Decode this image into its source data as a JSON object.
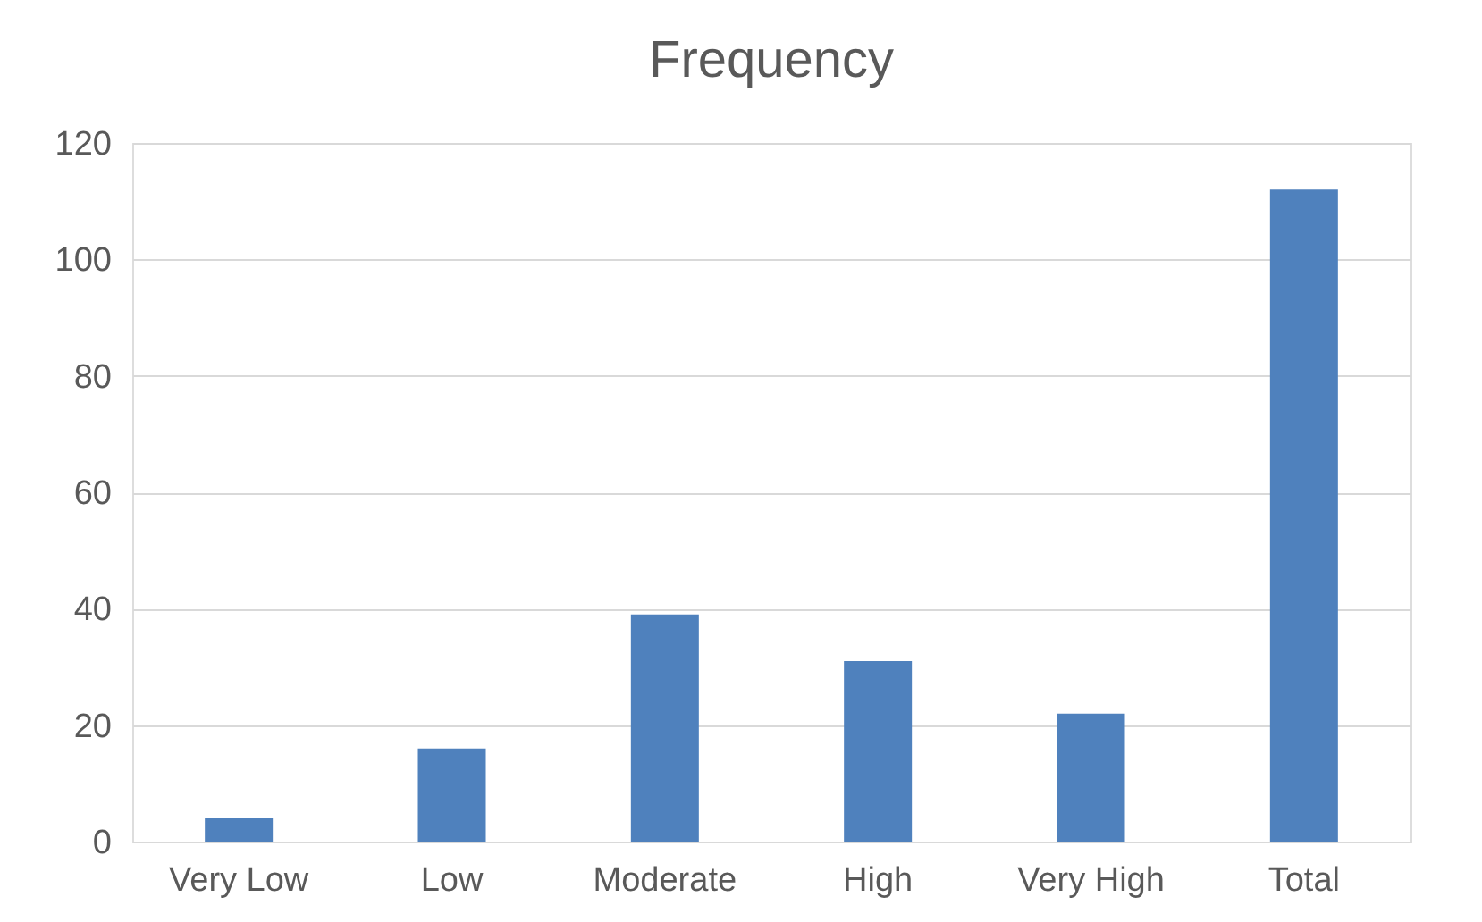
{
  "chart_data": {
    "type": "bar",
    "title": "Frequency",
    "categories": [
      "Very Low",
      "Low",
      "Moderate",
      "High",
      "Very High",
      "Total"
    ],
    "values": [
      4,
      16,
      39,
      31,
      22,
      112
    ],
    "color": "#4f81bd",
    "ylim": [
      0,
      120
    ],
    "yticks": [
      0,
      20,
      40,
      60,
      80,
      100,
      120
    ],
    "grid": "y"
  }
}
